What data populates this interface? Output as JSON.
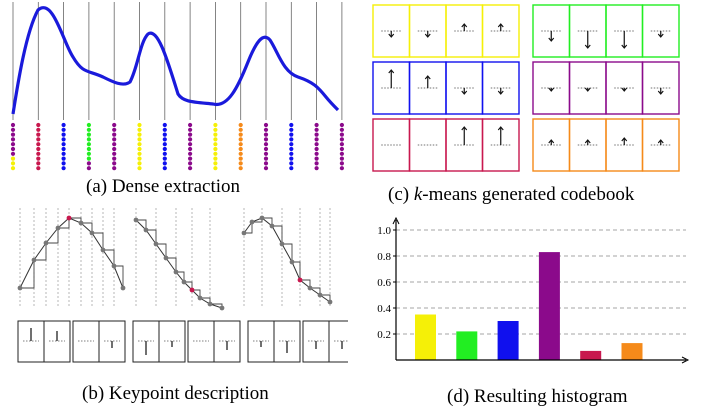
{
  "panels": {
    "a": {
      "caption": "(a) Dense extraction"
    },
    "b": {
      "caption": "(b) Keypoint description"
    },
    "c": {
      "caption_prefix": "(c) ",
      "caption_italic": "k",
      "caption_rest": "-means generated codebook"
    },
    "d": {
      "caption": "(d) Resulting histogram"
    }
  },
  "colors": {
    "yellow": "#f5f007",
    "blue": "#1010ee",
    "green": "#22ee22",
    "purple": "#8b0a8b",
    "crimson": "#c8184e",
    "orange": "#f58a1a",
    "curve": "#1a1adb"
  },
  "dense_extraction": {
    "stripe_colors": [
      "purple",
      "crimson",
      "blue",
      "green",
      "purple",
      "yellow",
      "blue",
      "purple",
      "yellow",
      "orange",
      "purple",
      "blue",
      "purple",
      "purple"
    ]
  },
  "codebook": {
    "groups": [
      {
        "color": "yellow",
        "cells": [
          "down-short",
          "down-short",
          "up-short",
          "up-short"
        ]
      },
      {
        "color": "green",
        "cells": [
          "down-med",
          "down-long",
          "down-long",
          "down-short"
        ]
      },
      {
        "color": "blue",
        "cells": [
          "up-long",
          "up-med",
          "down-short",
          "down-short"
        ]
      },
      {
        "color": "purple",
        "cells": [
          "down-tiny",
          "down-tiny",
          "down-tiny",
          "down-short"
        ]
      },
      {
        "color": "crimson",
        "cells": [
          "none",
          "none",
          "up-long",
          "up-long"
        ]
      },
      {
        "color": "orange",
        "cells": [
          "up-tiny",
          "up-tiny",
          "up-short",
          "up-tiny"
        ]
      }
    ]
  },
  "chart_data": {
    "type": "bar",
    "categories": [
      "",
      "",
      "",
      "",
      "",
      ""
    ],
    "values": [
      0.35,
      0.22,
      0.3,
      0.83,
      0.07,
      0.13
    ],
    "bar_colors": [
      "#f5f007",
      "#22ee22",
      "#1010ee",
      "#8b0a8b",
      "#c8184e",
      "#f58a1a"
    ],
    "ylim": [
      0,
      1.0
    ],
    "yticks": [
      {
        "value": 0.2,
        "label": "0.2"
      },
      {
        "value": 0.4,
        "label": "0.4"
      },
      {
        "value": 0.6,
        "label": "0.6"
      },
      {
        "value": 0.8,
        "label": "0.8"
      },
      {
        "value": 1.0,
        "label": "1.0"
      }
    ],
    "grid": true,
    "title": "",
    "xlabel": "",
    "ylabel": ""
  }
}
